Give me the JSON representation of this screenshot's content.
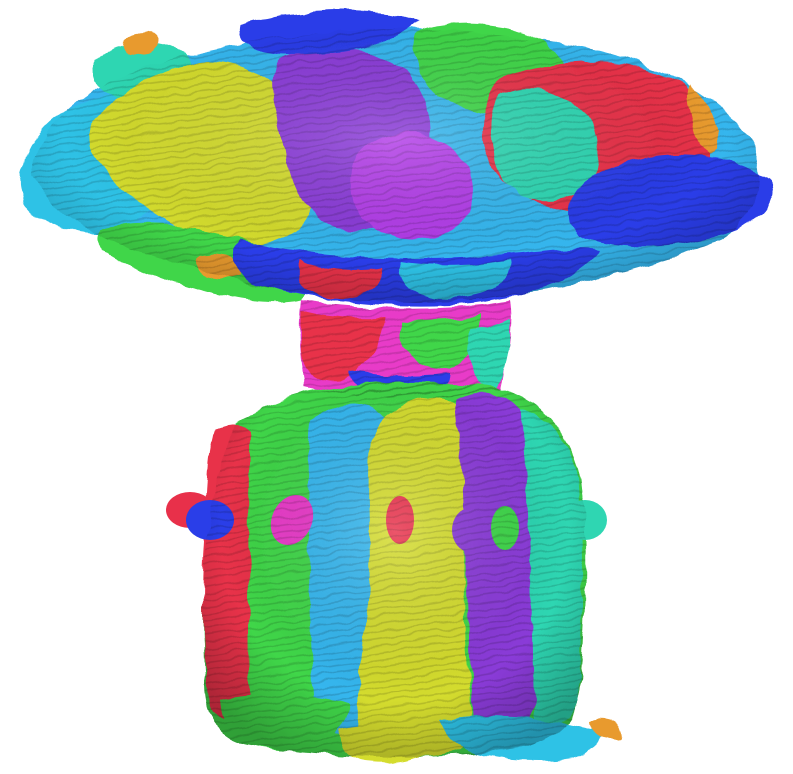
{
  "scene": {
    "subject": "segmented-3d-sculpture-render",
    "background_color": "#ffffff",
    "palette": {
      "yellow": "#d4dc2e",
      "magenta": "#b23ee8",
      "purple": "#8a3bd8",
      "green": "#3fd64a",
      "cyan": "#2fc2e6",
      "blue": "#2a3ee8",
      "red": "#e8304a",
      "teal": "#2fd6b2",
      "orange": "#e89a2e",
      "pink": "#e83ac8",
      "sky": "#36b6ee"
    }
  }
}
